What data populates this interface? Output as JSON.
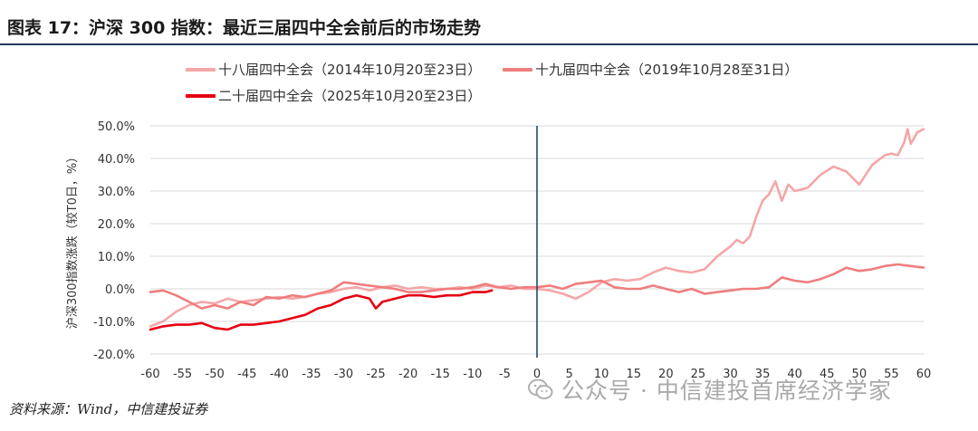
{
  "title": "图表 17：沪深 300 指数：最近三届四中全会前后的市场走势",
  "footer": "资料来源：Wind，中信建投证券",
  "watermark": "公众号 · 中信建投首席经济学家",
  "colors": {
    "title_rule": "#1f3a5a",
    "vline": "#1f4e6b",
    "grid": "#d9d9d9",
    "series_18": "#f4a6a8",
    "series_19": "#ef7d7e",
    "series_20": "#e60012"
  },
  "chart_data": {
    "type": "line",
    "title": "",
    "xlabel": "",
    "ylabel": "沪深300指数涨跌（较T0日，%）",
    "xlim": [
      -60,
      60
    ],
    "ylim": [
      -20,
      50
    ],
    "xticks": [
      "-60",
      "-55",
      "-50",
      "-45",
      "-40",
      "-35",
      "-30",
      "-25",
      "-20",
      "-15",
      "-10",
      "-5",
      "0",
      "5",
      "10",
      "15",
      "20",
      "25",
      "30",
      "35",
      "40",
      "45",
      "50",
      "55",
      "60"
    ],
    "yticks": [
      "50.0%",
      "40.0%",
      "30.0%",
      "20.0%",
      "10.0%",
      "0.0%",
      "-10.0%",
      "-20.0%"
    ],
    "grid": "horizontal",
    "reference_line_x": 0,
    "legend_position": "top",
    "series": [
      {
        "name": "十八届四中全会（2014年10月20至23日）",
        "points": [
          [
            -60,
            -11.5
          ],
          [
            -58,
            -10
          ],
          [
            -56,
            -7
          ],
          [
            -54,
            -5
          ],
          [
            -52,
            -4
          ],
          [
            -50,
            -4.5
          ],
          [
            -48,
            -3
          ],
          [
            -46,
            -4
          ],
          [
            -44,
            -3.5
          ],
          [
            -42,
            -3
          ],
          [
            -40,
            -2.5
          ],
          [
            -38,
            -3
          ],
          [
            -36,
            -2.5
          ],
          [
            -34,
            -1.5
          ],
          [
            -32,
            -1
          ],
          [
            -30,
            0
          ],
          [
            -28,
            0.5
          ],
          [
            -26,
            -0.5
          ],
          [
            -24,
            0.5
          ],
          [
            -22,
            1
          ],
          [
            -20,
            0
          ],
          [
            -18,
            0.5
          ],
          [
            -16,
            0
          ],
          [
            -14,
            0
          ],
          [
            -12,
            0.5
          ],
          [
            -10,
            0
          ],
          [
            -8,
            1
          ],
          [
            -6,
            0.5
          ],
          [
            -4,
            1
          ],
          [
            -2,
            0
          ],
          [
            0,
            0
          ],
          [
            2,
            -0.5
          ],
          [
            4,
            -1.5
          ],
          [
            6,
            -3
          ],
          [
            8,
            -1
          ],
          [
            10,
            2
          ],
          [
            12,
            3
          ],
          [
            14,
            2.5
          ],
          [
            16,
            3
          ],
          [
            18,
            5
          ],
          [
            20,
            6.5
          ],
          [
            22,
            5.5
          ],
          [
            24,
            5
          ],
          [
            26,
            6
          ],
          [
            28,
            10
          ],
          [
            30,
            13
          ],
          [
            31,
            15
          ],
          [
            32,
            14
          ],
          [
            33,
            16
          ],
          [
            34,
            22
          ],
          [
            35,
            27
          ],
          [
            36,
            29
          ],
          [
            37,
            33
          ],
          [
            38,
            27
          ],
          [
            39,
            32
          ],
          [
            40,
            30
          ],
          [
            42,
            31
          ],
          [
            44,
            35
          ],
          [
            46,
            37.5
          ],
          [
            48,
            36
          ],
          [
            50,
            32
          ],
          [
            52,
            38
          ],
          [
            54,
            41
          ],
          [
            55,
            41.5
          ],
          [
            56,
            41
          ],
          [
            57,
            45
          ],
          [
            58,
            44.5
          ],
          [
            59,
            48
          ],
          [
            60,
            49
          ],
          [
            57.5,
            49
          ]
        ]
      },
      {
        "name": "十九届四中全会（2019年10月28至31日）",
        "points": [
          [
            -60,
            -1
          ],
          [
            -58,
            -0.5
          ],
          [
            -56,
            -2
          ],
          [
            -54,
            -4
          ],
          [
            -52,
            -6
          ],
          [
            -50,
            -5
          ],
          [
            -48,
            -6
          ],
          [
            -46,
            -4
          ],
          [
            -44,
            -5
          ],
          [
            -42,
            -2.5
          ],
          [
            -40,
            -3
          ],
          [
            -38,
            -2
          ],
          [
            -36,
            -2.5
          ],
          [
            -34,
            -1.5
          ],
          [
            -32,
            -0.5
          ],
          [
            -30,
            2
          ],
          [
            -28,
            1.5
          ],
          [
            -26,
            1
          ],
          [
            -24,
            0.5
          ],
          [
            -22,
            0
          ],
          [
            -20,
            -1
          ],
          [
            -18,
            -1
          ],
          [
            -16,
            -0.5
          ],
          [
            -14,
            0
          ],
          [
            -12,
            0
          ],
          [
            -10,
            0.5
          ],
          [
            -8,
            1.5
          ],
          [
            -6,
            0.5
          ],
          [
            -4,
            0
          ],
          [
            -2,
            0.5
          ],
          [
            0,
            0.5
          ],
          [
            2,
            1
          ],
          [
            4,
            0
          ],
          [
            6,
            1.5
          ],
          [
            8,
            2
          ],
          [
            10,
            2.5
          ],
          [
            12,
            0.5
          ],
          [
            14,
            0
          ],
          [
            16,
            0
          ],
          [
            18,
            1
          ],
          [
            20,
            0
          ],
          [
            22,
            -1
          ],
          [
            24,
            0
          ],
          [
            26,
            -1.5
          ],
          [
            28,
            -1
          ],
          [
            30,
            -0.5
          ],
          [
            32,
            0
          ],
          [
            34,
            0
          ],
          [
            36,
            0.5
          ],
          [
            38,
            3.5
          ],
          [
            40,
            2.5
          ],
          [
            42,
            2
          ],
          [
            44,
            3
          ],
          [
            46,
            4.5
          ],
          [
            48,
            6.5
          ],
          [
            50,
            5.5
          ],
          [
            52,
            6
          ],
          [
            54,
            7
          ],
          [
            56,
            7.5
          ],
          [
            58,
            7
          ],
          [
            60,
            6.5
          ]
        ]
      },
      {
        "name": "二十届四中全会（2025年10月20至23日）",
        "points": [
          [
            -60,
            -12.5
          ],
          [
            -58,
            -11.5
          ],
          [
            -56,
            -11
          ],
          [
            -54,
            -11
          ],
          [
            -52,
            -10.5
          ],
          [
            -50,
            -12
          ],
          [
            -48,
            -12.5
          ],
          [
            -46,
            -11
          ],
          [
            -44,
            -11
          ],
          [
            -42,
            -10.5
          ],
          [
            -40,
            -10
          ],
          [
            -38,
            -9
          ],
          [
            -36,
            -8
          ],
          [
            -34,
            -6
          ],
          [
            -32,
            -5
          ],
          [
            -30,
            -3
          ],
          [
            -28,
            -2
          ],
          [
            -26,
            -3
          ],
          [
            -25,
            -6
          ],
          [
            -24,
            -4
          ],
          [
            -22,
            -3
          ],
          [
            -20,
            -2
          ],
          [
            -18,
            -2
          ],
          [
            -16,
            -2.5
          ],
          [
            -14,
            -2
          ],
          [
            -12,
            -2
          ],
          [
            -10,
            -1
          ],
          [
            -8,
            -1
          ],
          [
            -7,
            -0.5
          ]
        ]
      }
    ]
  }
}
